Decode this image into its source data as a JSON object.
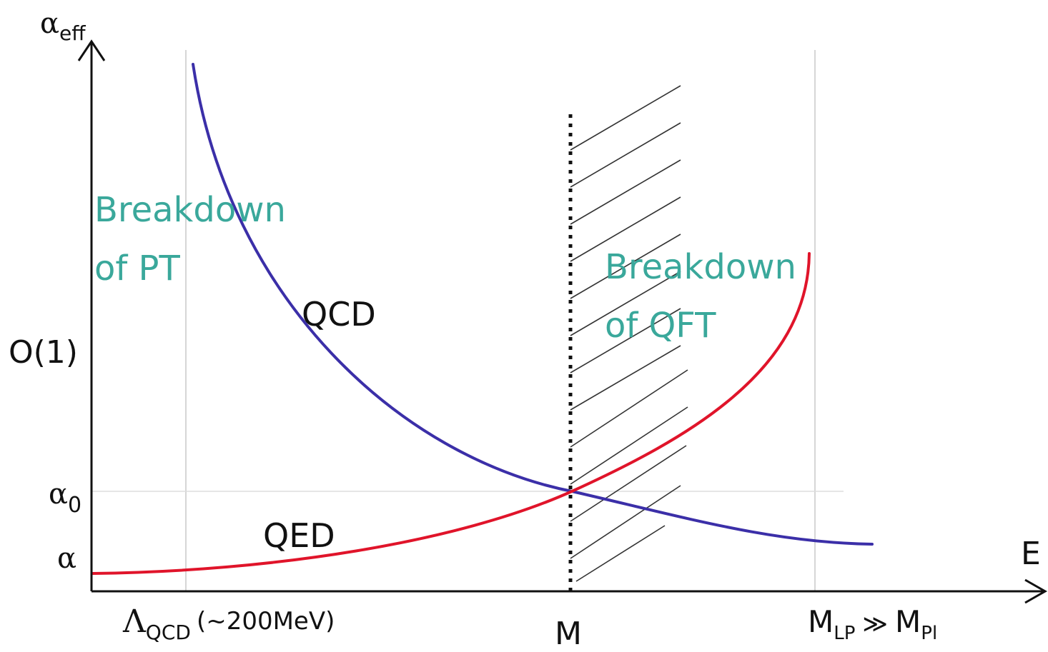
{
  "axes": {
    "y_symbol": "α",
    "y_subscript": "eff",
    "x_label": "E"
  },
  "y_ticks": {
    "order_one": "O(1)",
    "alpha0_symbol": "α",
    "alpha0_subscript": "0",
    "alpha": "α"
  },
  "x_ticks": {
    "lambda_symbol": "Λ",
    "lambda_subscript": "QCD",
    "lambda_note": "(~200MeV)",
    "m": "M",
    "mlp_symbol": "M",
    "mlp_subscript": "LP",
    "mlp_relation": "≫",
    "mpl_symbol": "M",
    "mpl_subscript": "Pl"
  },
  "curves": {
    "qcd_label": "QCD",
    "qed_label": "QED"
  },
  "annotations": {
    "pt_line1": "Breakdown",
    "pt_line2": "of PT",
    "qft_line1": "Breakdown",
    "qft_line2": "of QFT"
  },
  "colors": {
    "qcd": "#3b2fa8",
    "qed": "#e0142a",
    "annotation": "#3aa89b",
    "axis": "#111111",
    "guide": "#c8c8c8",
    "hatch": "#333333"
  }
}
